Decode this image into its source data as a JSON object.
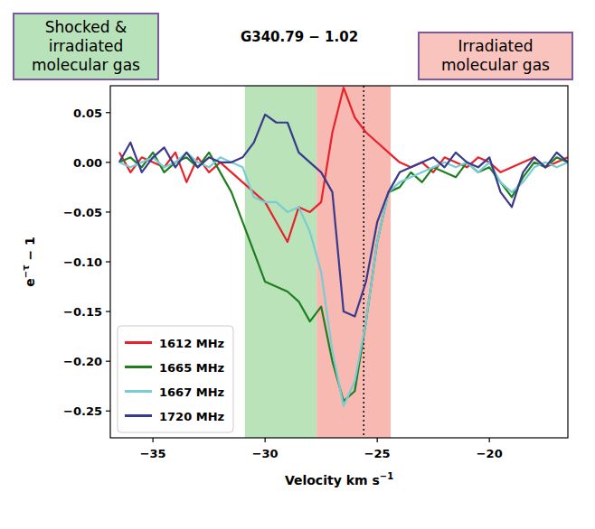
{
  "chart_data": {
    "type": "line",
    "title": "G340.79 − 1.02",
    "x_label": {
      "text": "Velocity km s",
      "sup": "−1"
    },
    "y_label": {
      "text": "e",
      "sup": "−τ",
      "rest": " − 1"
    },
    "x": [
      -36.5,
      -36,
      -35.5,
      -35,
      -34.5,
      -34,
      -33.5,
      -33,
      -32.5,
      -32,
      -31.5,
      -31,
      -30.5,
      -30,
      -29.5,
      -29,
      -28.5,
      -28,
      -27.5,
      -27,
      -26.5,
      -26,
      -25.5,
      -25,
      -24.5,
      -24,
      -23.5,
      -23,
      -22.5,
      -22,
      -21.5,
      -21,
      -20.5,
      -20,
      -19.5,
      -19,
      -18.5,
      -18,
      -17.5,
      -17,
      -16.5
    ],
    "series": [
      {
        "name": "1612 MHz",
        "color": "#e8222b",
        "values": [
          0.01,
          -0.01,
          0.005,
          0.0,
          -0.005,
          0.01,
          -0.02,
          0.005,
          -0.01,
          0.0,
          -0.01,
          -0.02,
          -0.03,
          -0.04,
          -0.06,
          -0.08,
          -0.045,
          -0.05,
          -0.04,
          0.03,
          0.075,
          0.045,
          0.03,
          0.02,
          0.01,
          0.0,
          -0.005,
          0.0,
          -0.01,
          0.005,
          0.0,
          -0.005,
          0.005,
          0.0,
          -0.01,
          -0.005,
          0.0,
          0.005,
          -0.005,
          0.0,
          0.005
        ]
      },
      {
        "name": "1665 MHz",
        "color": "#1f7f1f",
        "values": [
          0.0,
          0.005,
          -0.005,
          0.01,
          -0.01,
          0.0,
          0.005,
          -0.005,
          0.01,
          -0.01,
          -0.03,
          -0.06,
          -0.09,
          -0.12,
          -0.125,
          -0.13,
          -0.14,
          -0.16,
          -0.145,
          -0.2,
          -0.24,
          -0.23,
          -0.16,
          -0.08,
          -0.03,
          -0.025,
          -0.01,
          -0.02,
          -0.005,
          -0.01,
          -0.015,
          0.0,
          -0.01,
          -0.005,
          -0.02,
          -0.035,
          -0.015,
          0.0,
          -0.005,
          0.005,
          0.0
        ]
      },
      {
        "name": "1667 MHz",
        "color": "#78cdd3",
        "values": [
          0.0,
          -0.005,
          0.0,
          0.005,
          -0.005,
          0.0,
          0.01,
          0.0,
          -0.005,
          0.005,
          0.0,
          -0.005,
          -0.035,
          -0.04,
          -0.04,
          -0.05,
          -0.045,
          -0.07,
          -0.11,
          -0.19,
          -0.245,
          -0.22,
          -0.16,
          -0.08,
          -0.03,
          -0.02,
          -0.015,
          -0.01,
          -0.005,
          0.0,
          -0.005,
          0.0,
          -0.01,
          0.0,
          -0.02,
          -0.03,
          -0.02,
          -0.005,
          0.0,
          -0.005,
          0.0
        ]
      },
      {
        "name": "1720 MHz",
        "color": "#3a3a8c",
        "values": [
          0.0,
          0.02,
          -0.01,
          0.005,
          0.015,
          -0.005,
          0.01,
          -0.005,
          0.005,
          0.0,
          0.0,
          0.005,
          0.02,
          0.048,
          0.04,
          0.04,
          0.01,
          0.0,
          -0.01,
          -0.03,
          -0.15,
          -0.155,
          -0.12,
          -0.06,
          -0.03,
          -0.01,
          -0.005,
          0.0,
          0.005,
          -0.005,
          0.01,
          0.0,
          -0.005,
          0.005,
          -0.03,
          -0.045,
          -0.01,
          0.005,
          -0.005,
          0.01,
          0.0
        ]
      }
    ],
    "xlim": [
      -36.9,
      -16.5
    ],
    "ylim": [
      -0.277,
      0.077
    ],
    "xticks": [
      {
        "value": -35,
        "label": "−35"
      },
      {
        "value": -30,
        "label": "−30"
      },
      {
        "value": -25,
        "label": "−25"
      },
      {
        "value": -20,
        "label": "−20"
      }
    ],
    "yticks": [
      {
        "value": 0.05,
        "label": "0.05"
      },
      {
        "value": 0,
        "label": "0.00"
      },
      {
        "value": -0.05,
        "label": "−0.05"
      },
      {
        "value": -0.1,
        "label": "−0.10"
      },
      {
        "value": -0.15,
        "label": "−0.15"
      },
      {
        "value": -0.2,
        "label": "−0.20"
      },
      {
        "value": -0.25,
        "label": "−0.25"
      }
    ],
    "legend": "lower left",
    "grid": false,
    "regions": [
      {
        "text": "Shocked & irradiated molecular gas",
        "x_range": [
          -30.9,
          -27.7
        ],
        "color": "#a9dca9",
        "box_color": "#b8e2ba"
      },
      {
        "text": "Irradiated molecular gas",
        "x_range": [
          -27.7,
          -24.4
        ],
        "color": "#f6a89f",
        "box_color": "#f9c4be"
      }
    ],
    "reference_line": {
      "x": -25.6,
      "line_style": "dotted"
    }
  }
}
